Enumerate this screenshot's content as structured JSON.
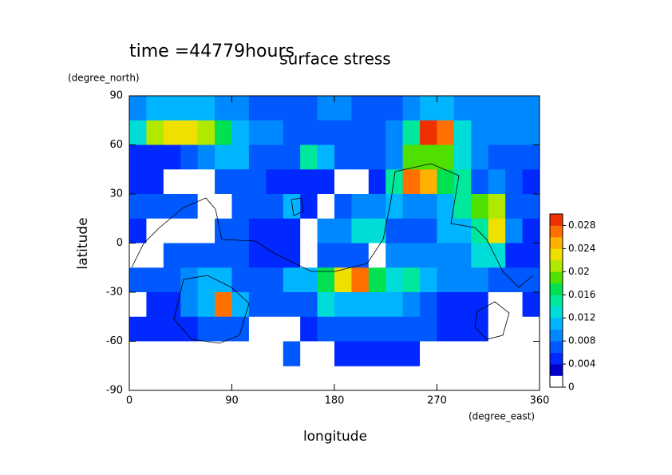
{
  "chart_data": {
    "type": "contour",
    "title": "surface stress",
    "subtitle": "time =44779hours",
    "x_label": "longitude",
    "y_label": "latitude",
    "x_unit": "(degree_east)",
    "y_unit": "(degree_north)",
    "xlim": [
      0,
      360
    ],
    "ylim": [
      -90,
      90
    ],
    "xticks": [
      0,
      90,
      180,
      270,
      360
    ],
    "yticks": [
      -90,
      -60,
      -30,
      0,
      30,
      60,
      90
    ],
    "x": [
      7.5,
      22.5,
      37.5,
      52.5,
      67.5,
      82.5,
      97.5,
      112.5,
      127.5,
      142.5,
      157.5,
      172.5,
      187.5,
      202.5,
      217.5,
      232.5,
      247.5,
      262.5,
      277.5,
      292.5,
      307.5,
      322.5,
      337.5,
      352.5
    ],
    "y": [
      82.5,
      67.5,
      52.5,
      37.5,
      22.5,
      7.5,
      -7.5,
      -22.5,
      -37.5,
      -52.5,
      -67.5
    ],
    "z": [
      [
        0.008,
        0.01,
        0.01,
        0.01,
        0.01,
        0.008,
        0.008,
        0.006,
        0.006,
        0.006,
        0.006,
        0.008,
        0.008,
        0.006,
        0.006,
        0.006,
        0.008,
        0.01,
        0.01,
        0.008,
        0.008,
        0.008,
        0.008,
        0.008
      ],
      [
        0.012,
        0.02,
        0.022,
        0.022,
        0.02,
        0.016,
        0.01,
        0.008,
        0.008,
        0.006,
        0.006,
        0.006,
        0.006,
        0.006,
        0.006,
        0.008,
        0.014,
        0.028,
        0.026,
        0.012,
        0.008,
        0.008,
        0.008,
        0.008
      ],
      [
        0.004,
        0.004,
        0.004,
        0.006,
        0.008,
        0.01,
        0.01,
        0.006,
        0.006,
        0.006,
        0.014,
        0.01,
        0.006,
        0.006,
        0.006,
        0.008,
        0.018,
        0.018,
        0.018,
        0.012,
        0.008,
        0.006,
        0.006,
        0.006
      ],
      [
        0.004,
        0.004,
        0.001,
        0.001,
        0.001,
        0.006,
        0.006,
        0.006,
        0.004,
        0.004,
        0.004,
        0.004,
        0.001,
        0.001,
        0.004,
        0.014,
        0.026,
        0.024,
        0.016,
        0.014,
        0.006,
        0.008,
        0.006,
        0.004
      ],
      [
        0.006,
        0.006,
        0.006,
        0.006,
        0.001,
        0.001,
        0.006,
        0.006,
        0.006,
        0.01,
        0.004,
        0.001,
        0.006,
        0.008,
        0.008,
        0.01,
        0.008,
        0.008,
        0.01,
        0.014,
        0.018,
        0.02,
        0.006,
        0.006
      ],
      [
        0.004,
        0.001,
        0.001,
        0.001,
        0.001,
        0.006,
        0.006,
        0.004,
        0.004,
        0.004,
        0.001,
        0.008,
        0.008,
        0.012,
        0.012,
        0.006,
        0.006,
        0.006,
        0.01,
        0.01,
        0.014,
        0.022,
        0.008,
        0.004
      ],
      [
        0.001,
        0.001,
        0.006,
        0.006,
        0.006,
        0.006,
        0.006,
        0.004,
        0.004,
        0.004,
        0.001,
        0.006,
        0.006,
        0.006,
        0.001,
        0.008,
        0.008,
        0.008,
        0.008,
        0.008,
        0.012,
        0.012,
        0.004,
        0.004
      ],
      [
        0.006,
        0.006,
        0.006,
        0.008,
        0.01,
        0.01,
        0.006,
        0.006,
        0.006,
        0.01,
        0.01,
        0.016,
        0.022,
        0.026,
        0.016,
        0.012,
        0.014,
        0.01,
        0.008,
        0.008,
        0.008,
        0.006,
        0.006,
        0.006
      ],
      [
        0.001,
        0.004,
        0.004,
        0.008,
        0.01,
        0.026,
        0.01,
        0.006,
        0.006,
        0.006,
        0.006,
        0.012,
        0.01,
        0.01,
        0.01,
        0.01,
        0.008,
        0.006,
        0.004,
        0.004,
        0.004,
        0.001,
        0.001,
        0.004
      ],
      [
        0.004,
        0.004,
        0.004,
        0.004,
        0.006,
        0.006,
        0.006,
        0.001,
        0.001,
        0.001,
        0.004,
        0.006,
        0.006,
        0.006,
        0.006,
        0.006,
        0.006,
        0.006,
        0.004,
        0.004,
        0.004,
        0.001,
        0.001,
        0.001
      ],
      [
        0.001,
        0.001,
        0.001,
        0.001,
        0.001,
        0.001,
        0.001,
        0.001,
        0.001,
        0.006,
        0.001,
        0.001,
        0.004,
        0.004,
        0.004,
        0.004,
        0.004,
        0.001,
        0.001,
        0.001,
        0.001,
        0.001,
        0.001,
        0.001
      ]
    ],
    "clim": [
      0,
      0.03
    ],
    "cticks": [
      0,
      0.004,
      0.008,
      0.012,
      0.016,
      0.02,
      0.024,
      0.028
    ],
    "colors": [
      "#ffffff",
      "#0000c8",
      "#0028ff",
      "#0058ff",
      "#0088ff",
      "#00b4ff",
      "#00dcd8",
      "#00e89c",
      "#00e050",
      "#50e000",
      "#b0e800",
      "#f0e000",
      "#ffb000",
      "#ff7000",
      "#f03000"
    ]
  }
}
